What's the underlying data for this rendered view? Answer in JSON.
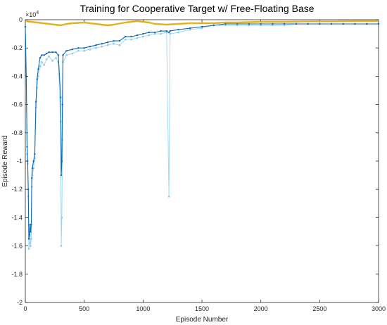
{
  "chart_data": {
    "type": "line",
    "title": "Training for Cooperative Target w/ Free-Floating Base",
    "xlabel": "Episode Number",
    "ylabel": "Episode Reward",
    "y_exponent_label": "×10",
    "y_exponent_power": "4",
    "xlim": [
      0,
      3000
    ],
    "ylim": [
      -2,
      0
    ],
    "xticks": [
      0,
      500,
      1000,
      1500,
      2000,
      2500,
      3000
    ],
    "yticks": [
      0,
      -0.2,
      -0.4,
      -0.6,
      -0.8,
      -1,
      -1.2,
      -1.4,
      -1.6,
      -1.8,
      -2
    ],
    "ytick_labels": [
      "0",
      "-0.2",
      "-0.4",
      "-0.6",
      "-0.8",
      "-1",
      "-1.2",
      "-1.4",
      "-1.6",
      "-1.8",
      "-2"
    ],
    "xtick_labels": [
      "0",
      "500",
      "1000",
      "1500",
      "2000",
      "2500",
      "3000"
    ],
    "grid": false,
    "colors": {
      "episode_reward": "#8fd0f0",
      "average_reward": "#0e66b3",
      "q0": "#e3b21e"
    },
    "series": [
      {
        "key": "episode_reward",
        "points": [
          [
            0,
            -0.05
          ],
          [
            8,
            -0.42
          ],
          [
            15,
            -0.95
          ],
          [
            20,
            -1.02
          ],
          [
            25,
            -1.25
          ],
          [
            30,
            -1.62
          ],
          [
            35,
            -1.58
          ],
          [
            40,
            -1.5
          ],
          [
            45,
            -1.6
          ],
          [
            50,
            -1.55
          ],
          [
            55,
            -1.18
          ],
          [
            60,
            -1.1
          ],
          [
            70,
            -1.05
          ],
          [
            80,
            -0.98
          ],
          [
            90,
            -0.62
          ],
          [
            100,
            -0.48
          ],
          [
            110,
            -0.4
          ],
          [
            125,
            -0.33
          ],
          [
            140,
            -0.3
          ],
          [
            160,
            -0.32
          ],
          [
            180,
            -0.28
          ],
          [
            200,
            -0.26
          ],
          [
            230,
            -0.29
          ],
          [
            260,
            -0.27
          ],
          [
            280,
            -0.3
          ],
          [
            300,
            -0.72
          ],
          [
            305,
            -1.6
          ],
          [
            310,
            -1.4
          ],
          [
            315,
            -0.85
          ],
          [
            320,
            -0.3
          ],
          [
            350,
            -0.25
          ],
          [
            400,
            -0.24
          ],
          [
            450,
            -0.22
          ],
          [
            500,
            -0.22
          ],
          [
            550,
            -0.21
          ],
          [
            600,
            -0.2
          ],
          [
            650,
            -0.19
          ],
          [
            700,
            -0.18
          ],
          [
            750,
            -0.17
          ],
          [
            800,
            -0.18
          ],
          [
            850,
            -0.14
          ],
          [
            900,
            -0.14
          ],
          [
            950,
            -0.13
          ],
          [
            1000,
            -0.12
          ],
          [
            1050,
            -0.11
          ],
          [
            1100,
            -0.1
          ],
          [
            1150,
            -0.1
          ],
          [
            1200,
            -0.09
          ],
          [
            1220,
            -1.25
          ],
          [
            1230,
            -0.1
          ],
          [
            1300,
            -0.09
          ],
          [
            1400,
            -0.07
          ],
          [
            1500,
            -0.06
          ],
          [
            1600,
            -0.04
          ],
          [
            1700,
            -0.04
          ],
          [
            1800,
            -0.04
          ],
          [
            1900,
            -0.04
          ],
          [
            2000,
            -0.04
          ],
          [
            2100,
            -0.04
          ],
          [
            2200,
            -0.04
          ],
          [
            2300,
            -0.03
          ],
          [
            2400,
            -0.03
          ],
          [
            2500,
            -0.03
          ],
          [
            2600,
            -0.03
          ],
          [
            2700,
            -0.03
          ],
          [
            2800,
            -0.03
          ],
          [
            2900,
            -0.03
          ],
          [
            3000,
            -0.03
          ]
        ]
      },
      {
        "key": "average_reward",
        "points": [
          [
            0,
            -0.05
          ],
          [
            8,
            -0.4
          ],
          [
            15,
            -0.9
          ],
          [
            20,
            -1.0
          ],
          [
            25,
            -1.2
          ],
          [
            30,
            -1.55
          ],
          [
            35,
            -1.52
          ],
          [
            40,
            -1.45
          ],
          [
            45,
            -1.5
          ],
          [
            50,
            -1.45
          ],
          [
            55,
            -1.12
          ],
          [
            60,
            -1.05
          ],
          [
            70,
            -1.0
          ],
          [
            80,
            -0.95
          ],
          [
            90,
            -0.58
          ],
          [
            100,
            -0.42
          ],
          [
            110,
            -0.35
          ],
          [
            125,
            -0.27
          ],
          [
            140,
            -0.25
          ],
          [
            160,
            -0.25
          ],
          [
            180,
            -0.24
          ],
          [
            200,
            -0.23
          ],
          [
            230,
            -0.23
          ],
          [
            260,
            -0.23
          ],
          [
            280,
            -0.25
          ],
          [
            300,
            -0.55
          ],
          [
            305,
            -1.1
          ],
          [
            310,
            -1.0
          ],
          [
            315,
            -0.6
          ],
          [
            320,
            -0.25
          ],
          [
            350,
            -0.22
          ],
          [
            400,
            -0.21
          ],
          [
            450,
            -0.2
          ],
          [
            500,
            -0.2
          ],
          [
            550,
            -0.19
          ],
          [
            600,
            -0.18
          ],
          [
            650,
            -0.17
          ],
          [
            700,
            -0.16
          ],
          [
            750,
            -0.15
          ],
          [
            800,
            -0.15
          ],
          [
            850,
            -0.12
          ],
          [
            900,
            -0.12
          ],
          [
            950,
            -0.11
          ],
          [
            1000,
            -0.1
          ],
          [
            1050,
            -0.09
          ],
          [
            1100,
            -0.09
          ],
          [
            1150,
            -0.08
          ],
          [
            1200,
            -0.08
          ],
          [
            1220,
            -0.09
          ],
          [
            1230,
            -0.08
          ],
          [
            1300,
            -0.07
          ],
          [
            1400,
            -0.06
          ],
          [
            1500,
            -0.05
          ],
          [
            1600,
            -0.04
          ],
          [
            1700,
            -0.03
          ],
          [
            1800,
            -0.03
          ],
          [
            1900,
            -0.03
          ],
          [
            2000,
            -0.03
          ],
          [
            2100,
            -0.03
          ],
          [
            2200,
            -0.03
          ],
          [
            2300,
            -0.03
          ],
          [
            2400,
            -0.03
          ],
          [
            2500,
            -0.03
          ],
          [
            2600,
            -0.03
          ],
          [
            2700,
            -0.03
          ],
          [
            2800,
            -0.03
          ],
          [
            2900,
            -0.03
          ],
          [
            3000,
            -0.03
          ]
        ]
      },
      {
        "key": "q0",
        "points": [
          [
            0,
            -0.01
          ],
          [
            100,
            -0.02
          ],
          [
            200,
            -0.03
          ],
          [
            300,
            -0.04
          ],
          [
            350,
            -0.03
          ],
          [
            400,
            -0.025
          ],
          [
            500,
            -0.02
          ],
          [
            600,
            -0.03
          ],
          [
            700,
            -0.04
          ],
          [
            750,
            -0.035
          ],
          [
            850,
            -0.02
          ],
          [
            950,
            -0.01
          ],
          [
            1050,
            -0.02
          ],
          [
            1100,
            -0.03
          ],
          [
            1200,
            -0.035
          ],
          [
            1300,
            -0.03
          ],
          [
            1400,
            -0.025
          ],
          [
            1500,
            -0.025
          ],
          [
            1600,
            -0.025
          ],
          [
            1700,
            -0.02
          ],
          [
            1800,
            -0.02
          ],
          [
            2000,
            -0.015
          ],
          [
            2200,
            -0.015
          ],
          [
            2400,
            -0.012
          ],
          [
            2600,
            -0.012
          ],
          [
            2800,
            -0.01
          ],
          [
            3000,
            -0.01
          ]
        ]
      }
    ]
  }
}
